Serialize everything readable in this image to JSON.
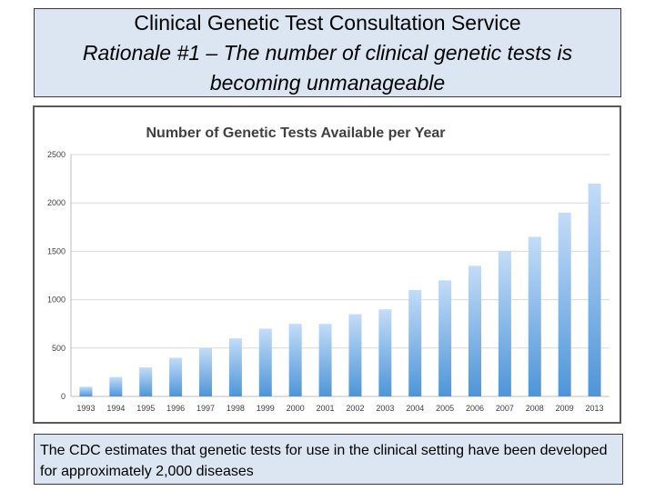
{
  "header": {
    "title": "Clinical Genetic Test Consultation Service",
    "subtitle": "Rationale #1 – The number of clinical genetic tests is becoming unmanageable"
  },
  "caption": {
    "text": "The CDC estimates that genetic tests for use in the clinical setting have been developed for approximately 2,000 diseases"
  },
  "colors": {
    "panel_fill": "#dce6f2",
    "bar_light": "#c3dcf8",
    "bar_dark": "#4e95d8",
    "grid": "#d9d9d9"
  },
  "chart_data": {
    "type": "bar",
    "title": "Number of Genetic Tests Available per Year",
    "xlabel": "",
    "ylabel": "",
    "categories": [
      "1993",
      "1994",
      "1995",
      "1996",
      "1997",
      "1998",
      "1999",
      "2000",
      "2001",
      "2002",
      "2003",
      "2004",
      "2005",
      "2006",
      "2007",
      "2008",
      "2009",
      "2013"
    ],
    "values": [
      100,
      200,
      300,
      400,
      500,
      600,
      700,
      750,
      750,
      850,
      900,
      1100,
      1200,
      1350,
      1500,
      1650,
      1900,
      2200
    ],
    "ylim": [
      0,
      2500
    ],
    "yticks": [
      "0",
      "500",
      "1000",
      "1500",
      "2000",
      "2500"
    ],
    "grid": true,
    "legend": "none"
  }
}
